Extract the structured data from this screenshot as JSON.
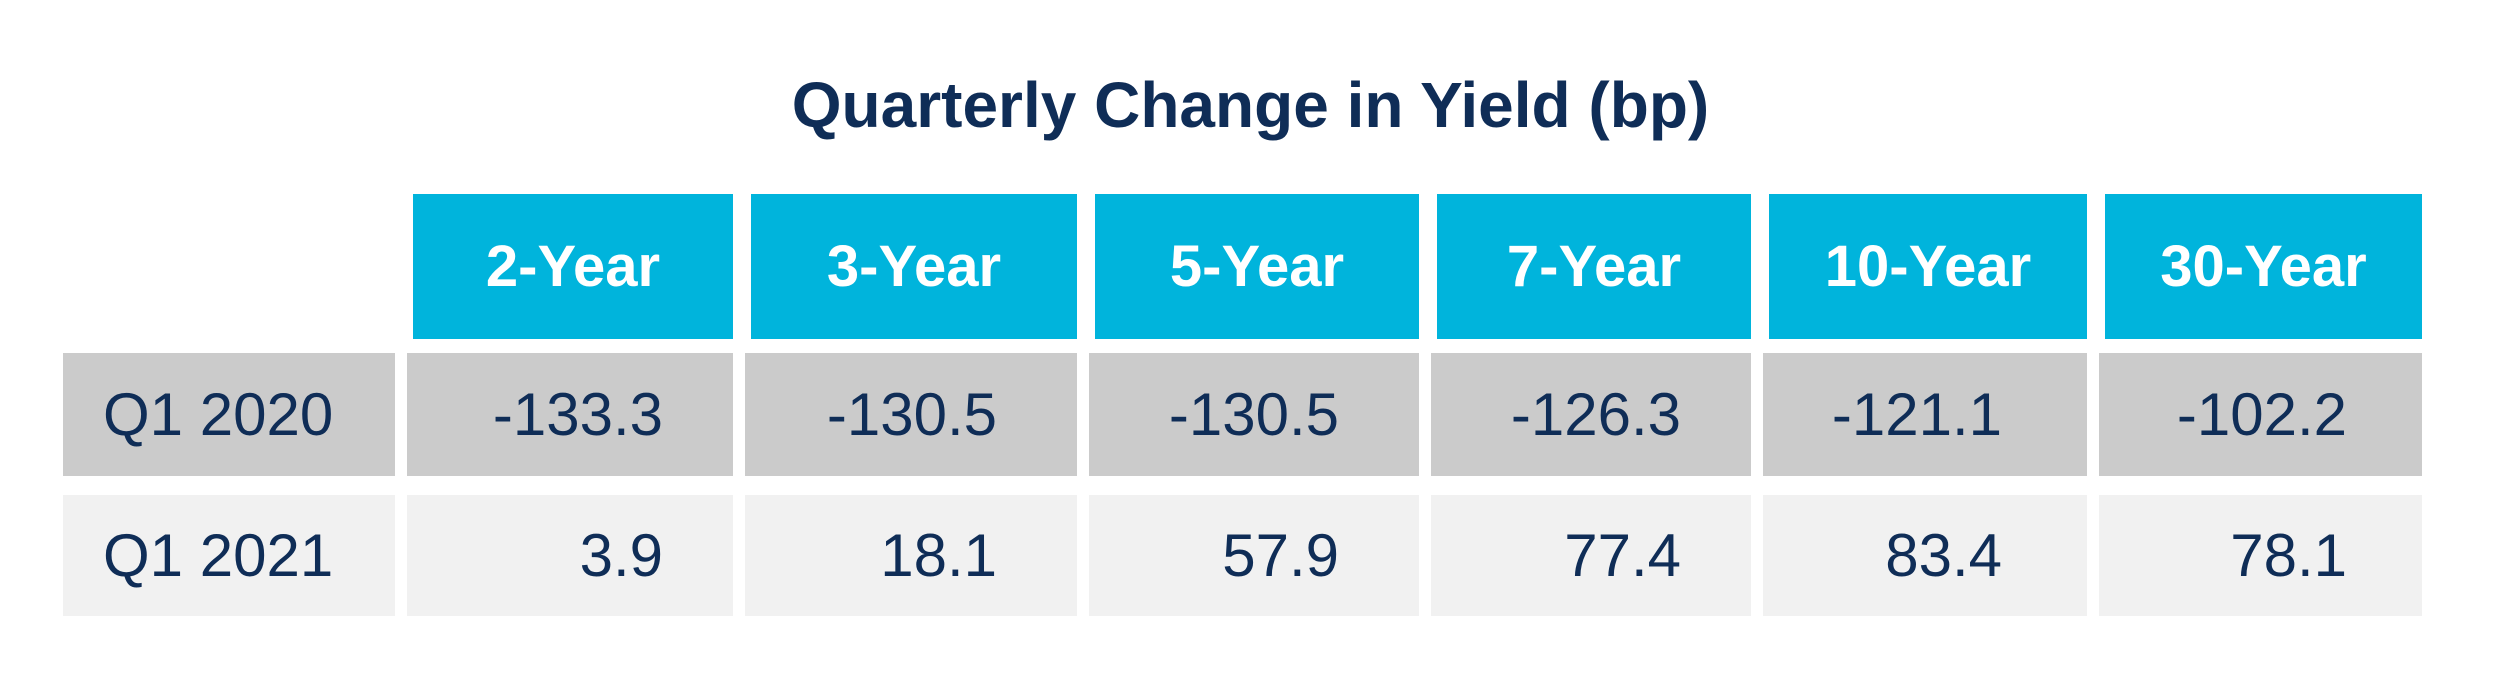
{
  "chart_data": {
    "type": "table",
    "title": "Quarterly Change in Yield (bp)",
    "columns": [
      "2-Year",
      "3-Year",
      "5-Year",
      "7-Year",
      "10-Year",
      "30-Year"
    ],
    "rows": [
      {
        "label": "Q1 2020",
        "values": [
          "-133.3",
          "-130.5",
          "-130.5",
          "-126.3",
          "-121.1",
          "-102.2"
        ]
      },
      {
        "label": "Q1 2021",
        "values": [
          "3.9",
          "18.1",
          "57.9",
          "77.4",
          "83.4",
          "78.1"
        ]
      }
    ]
  },
  "colors": {
    "header_bg": "#00b4dc",
    "header_text": "#ffffff",
    "title_text": "#0f2d57",
    "row1_bg": "#cbcbcb",
    "row2_bg": "#f1f1f1",
    "body_text": "#0f2d57"
  }
}
